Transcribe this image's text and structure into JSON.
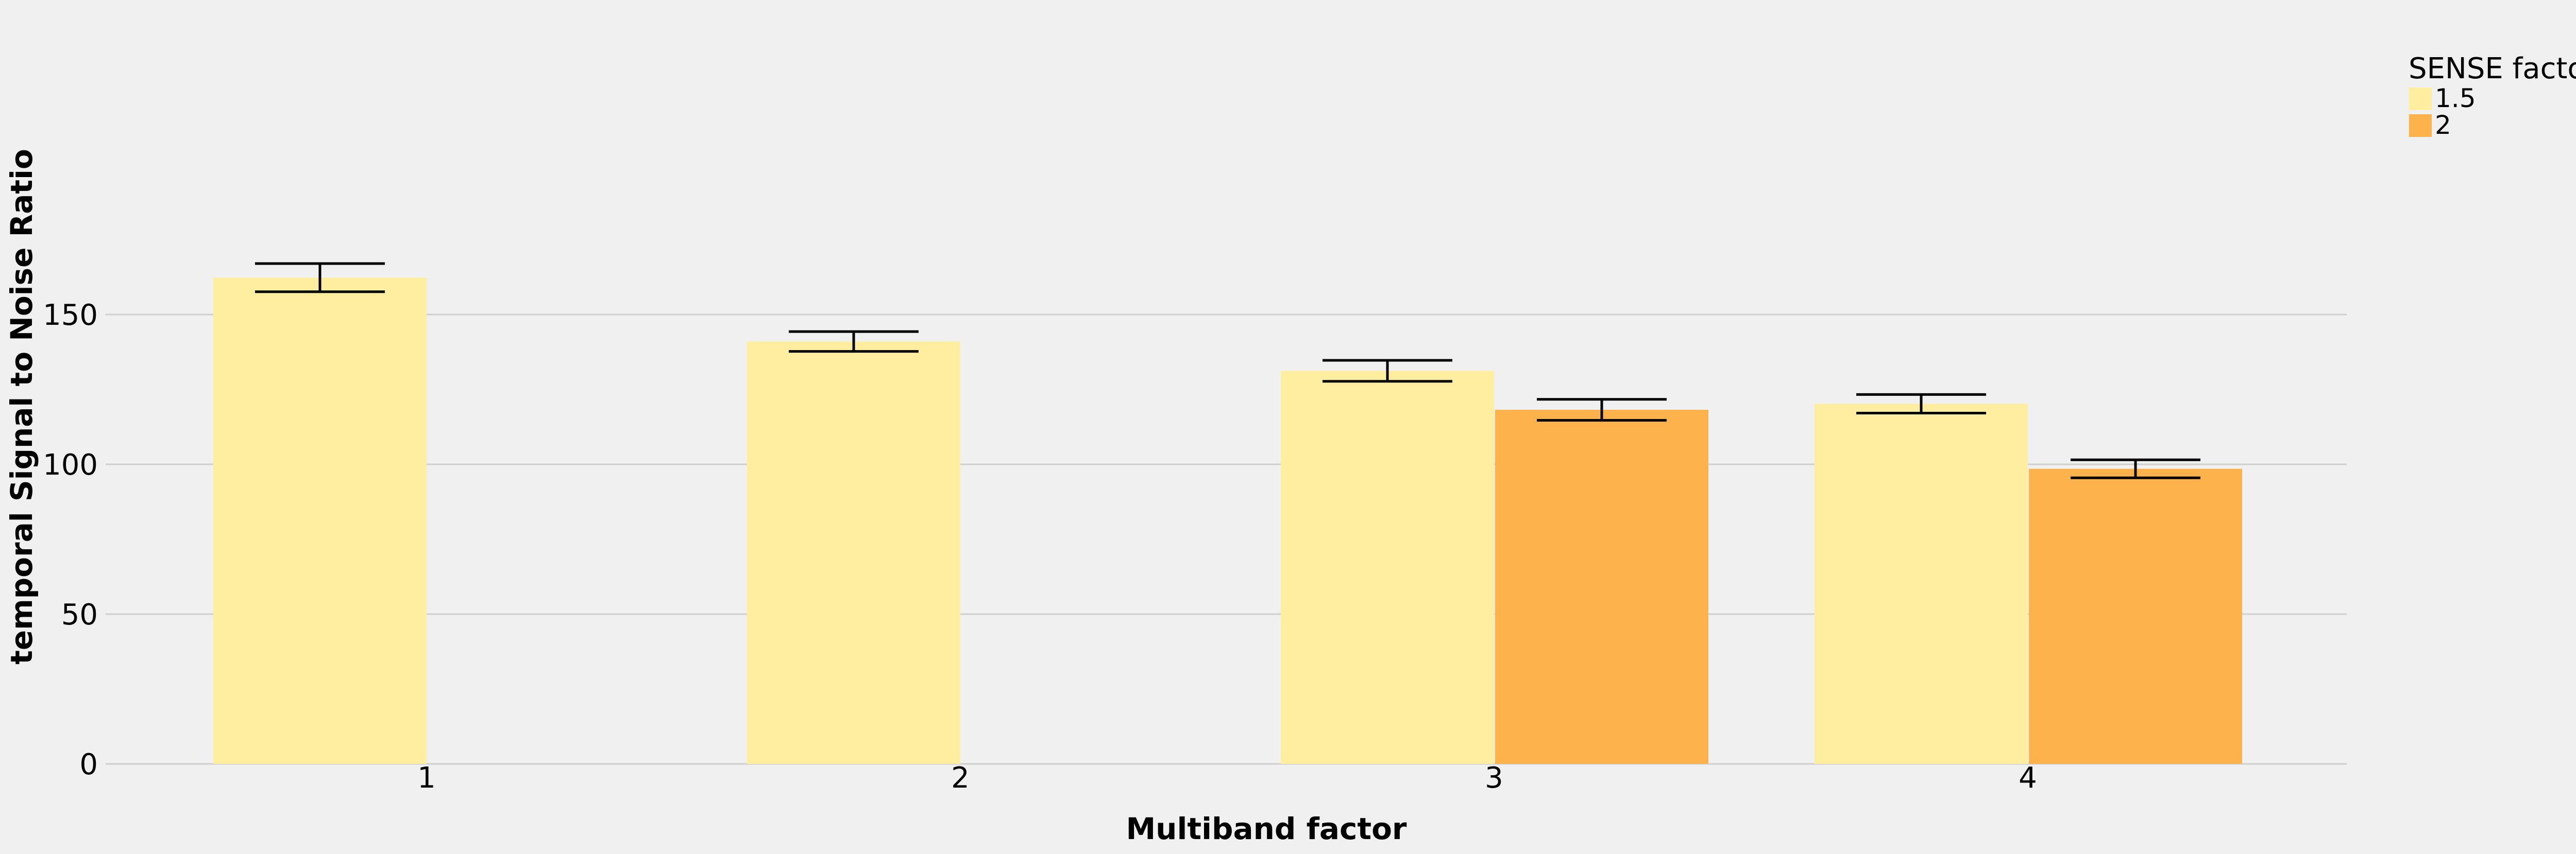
{
  "chart_data": {
    "type": "bar",
    "title": "",
    "xlabel": "Multiband factor",
    "ylabel": "temporal Signal to Noise Ratio",
    "categories": [
      "1",
      "2",
      "3",
      "4"
    ],
    "ylim": [
      0,
      180
    ],
    "yticks": [
      0,
      50,
      100,
      150
    ],
    "grid": "horizontal",
    "legend": {
      "title": "SENSE factor",
      "placement": "right"
    },
    "series": [
      {
        "name": "1.5",
        "color": "#ffeda0",
        "values": [
          162.3,
          141.0,
          131.2,
          120.2
        ],
        "error": [
          4.7,
          3.3,
          3.5,
          3.1
        ]
      },
      {
        "name": "2",
        "color": "#feb24c",
        "values": [
          null,
          null,
          118.2,
          98.5
        ],
        "error": [
          null,
          null,
          3.5,
          3.0
        ]
      }
    ]
  }
}
